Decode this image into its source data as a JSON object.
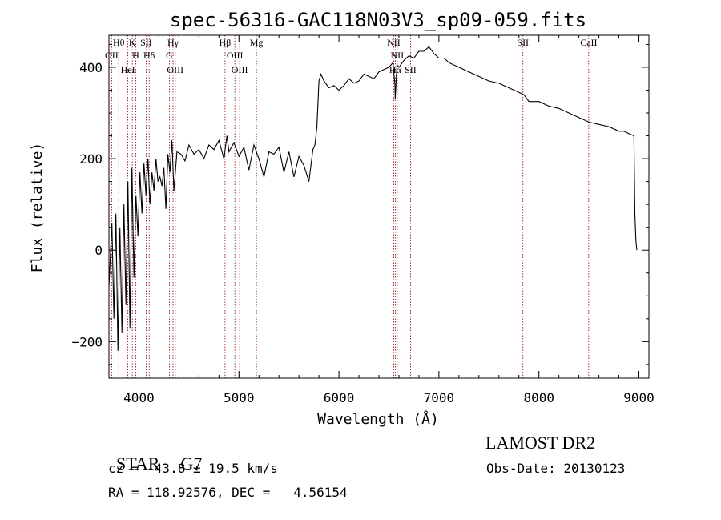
{
  "chart_data": {
    "type": "line",
    "title": "spec-56316-GAC118N03V3_sp09-059.fits",
    "xlabel": "Wavelength (Å)",
    "ylabel": "Flux (relative)",
    "xlim": [
      3700,
      9100
    ],
    "ylim": [
      -280,
      470
    ],
    "xticks": [
      4000,
      5000,
      6000,
      7000,
      8000,
      9000
    ],
    "yticks": [
      -200,
      0,
      200,
      400
    ],
    "grid": false,
    "series": [
      {
        "x": [
          3700,
          3730,
          3750,
          3770,
          3790,
          3810,
          3830,
          3850,
          3870,
          3890,
          3910,
          3930,
          3950,
          3970,
          3990,
          4010,
          4030,
          4050,
          4070,
          4090,
          4110,
          4130,
          4150,
          4170,
          4190,
          4210,
          4230,
          4250,
          4270,
          4290,
          4310,
          4330,
          4350,
          4380,
          4420,
          4460,
          4500,
          4550,
          4600,
          4650,
          4700,
          4750,
          4800,
          4850,
          4880,
          4900,
          4950,
          5000,
          5050,
          5100,
          5150,
          5200,
          5250,
          5300,
          5350,
          5400,
          5450,
          5500,
          5550,
          5600,
          5650,
          5700,
          5740,
          5760,
          5780,
          5800,
          5820,
          5850,
          5900,
          5950,
          6000,
          6050,
          6100,
          6150,
          6200,
          6250,
          6300,
          6350,
          6400,
          6450,
          6500,
          6540,
          6560,
          6563,
          6580,
          6600,
          6650,
          6700,
          6750,
          6800,
          6850,
          6900,
          6950,
          7000,
          7050,
          7100,
          7150,
          7200,
          7300,
          7400,
          7500,
          7600,
          7700,
          7800,
          7850,
          7900,
          8000,
          8100,
          8200,
          8300,
          8400,
          8500,
          8600,
          8700,
          8800,
          8850,
          8900,
          8950,
          8960,
          8970,
          8980
        ],
        "values": [
          -80,
          60,
          -150,
          80,
          -220,
          50,
          -180,
          100,
          -120,
          150,
          -170,
          180,
          -60,
          120,
          30,
          170,
          80,
          190,
          120,
          200,
          100,
          170,
          130,
          200,
          150,
          160,
          140,
          180,
          90,
          210,
          170,
          240,
          130,
          215,
          210,
          195,
          230,
          210,
          220,
          200,
          230,
          220,
          240,
          200,
          250,
          215,
          235,
          205,
          225,
          175,
          230,
          200,
          160,
          215,
          210,
          225,
          170,
          215,
          160,
          205,
          185,
          150,
          220,
          230,
          270,
          370,
          385,
          370,
          355,
          360,
          350,
          360,
          375,
          365,
          370,
          385,
          380,
          375,
          390,
          395,
          400,
          410,
          360,
          330,
          405,
          400,
          415,
          425,
          420,
          435,
          435,
          445,
          430,
          420,
          420,
          410,
          405,
          400,
          390,
          380,
          370,
          365,
          355,
          345,
          340,
          325,
          325,
          315,
          310,
          300,
          290,
          280,
          275,
          270,
          260,
          260,
          255,
          250,
          80,
          20,
          0
        ]
      }
    ],
    "lines": [
      {
        "label": "Hθ",
        "x": 3798
      },
      {
        "label": "OII",
        "x": 3727
      },
      {
        "label": "HeI",
        "x": 3889
      },
      {
        "label": "K",
        "x": 3934
      },
      {
        "label": "H",
        "x": 3968
      },
      {
        "label": "SII",
        "x": 4072
      },
      {
        "label": "Hδ",
        "x": 4102
      },
      {
        "label": "Hγ",
        "x": 4341
      },
      {
        "label": "G",
        "x": 4304
      },
      {
        "label": "OIII",
        "x": 4363
      },
      {
        "label": "Hβ",
        "x": 4861
      },
      {
        "label": "OIII",
        "x": 4959
      },
      {
        "label": "OIII",
        "x": 5007
      },
      {
        "label": "Mg",
        "x": 5175
      },
      {
        "label": "NII",
        "x": 6548
      },
      {
        "label": "NII",
        "x": 6583
      },
      {
        "label": "Hα",
        "x": 6563
      },
      {
        "label": "SII",
        "x": 6716
      },
      {
        "label": "SII",
        "x": 7840
      },
      {
        "label": "CaII",
        "x": 8498
      }
    ]
  },
  "info": {
    "class_label": "STAR",
    "subclass": "G7",
    "survey": "LAMOST DR2",
    "cz": "cz = -43.8 ± 19.5 km/s",
    "obs_date": "Obs-Date: 20130123",
    "radec": "RA = 118.92576, DEC =   4.56154"
  }
}
